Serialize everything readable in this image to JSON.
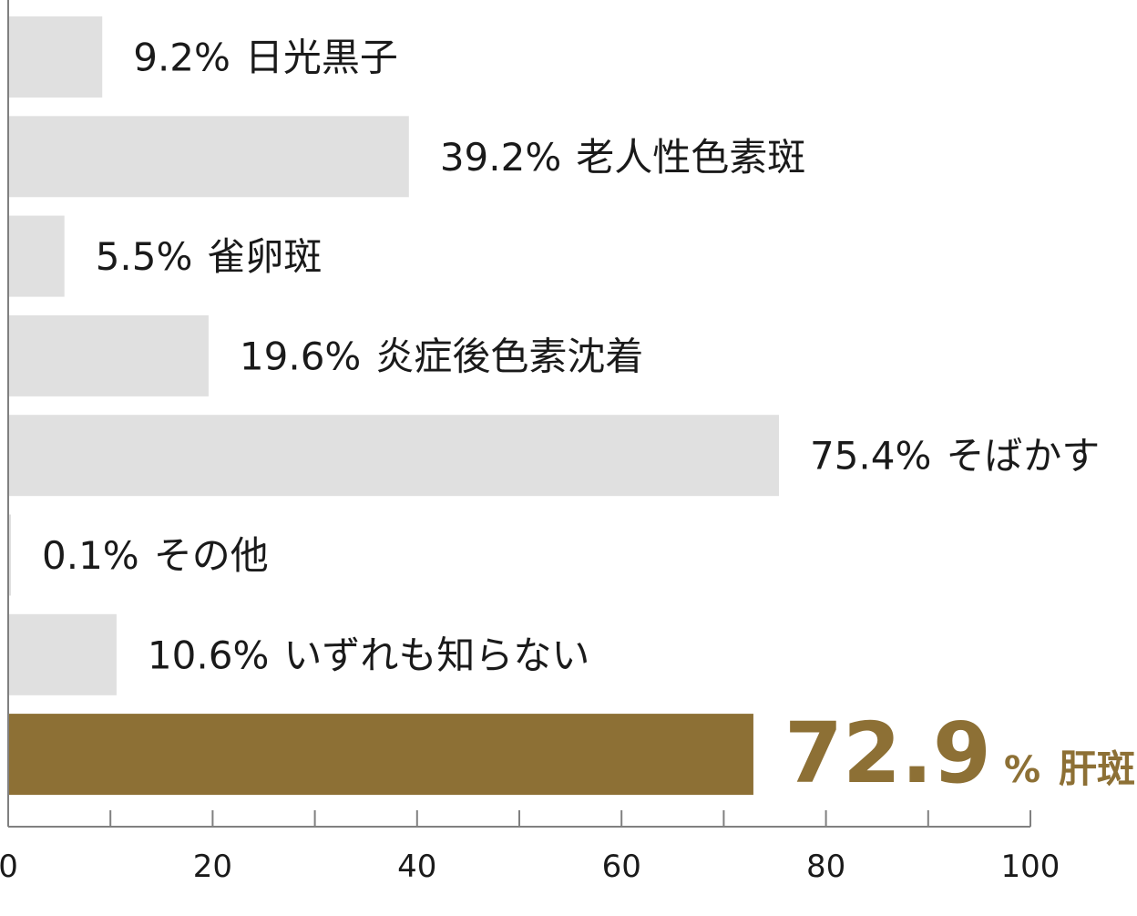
{
  "chart_data": {
    "type": "bar",
    "orientation": "horizontal",
    "categories": [
      "日光黒子",
      "老人性色素斑",
      "雀卵斑",
      "炎症後色素沈着",
      "そばかす",
      "その他",
      "いずれも知らない",
      "肝斑"
    ],
    "values": [
      9.2,
      39.2,
      5.5,
      19.6,
      75.4,
      0.1,
      10.6,
      72.9
    ],
    "value_labels": [
      "9.2%",
      "39.2%",
      "5.5%",
      "19.6%",
      "75.4%",
      "0.1%",
      "10.6%",
      "72.9"
    ],
    "highlight_index": 7,
    "highlight_unit": "%",
    "xlim": [
      0,
      100
    ],
    "x_ticks": [
      "0",
      "20",
      "40",
      "60",
      "80",
      "100"
    ],
    "grid": false,
    "colors": {
      "bar": "#e0e0e0",
      "highlight": "#8d7035",
      "axis": "#808080",
      "text": "#1a1a1a"
    }
  }
}
